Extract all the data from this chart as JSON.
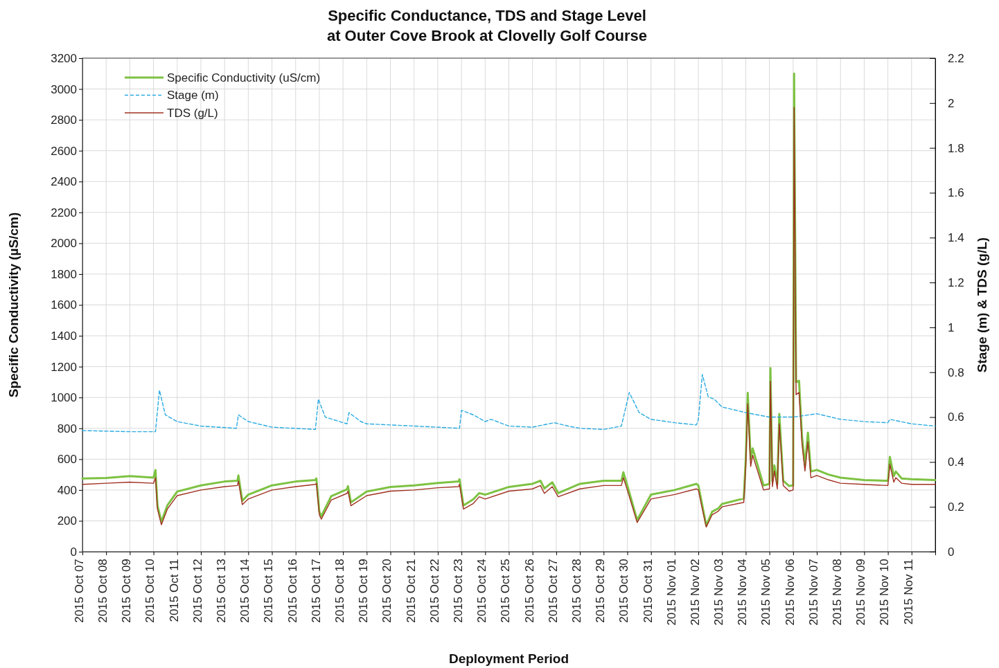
{
  "chart_data": {
    "type": "line",
    "title": "Specific Conductance, TDS and Stage Level",
    "subtitle": "at Outer Cove Brook at Clovelly Golf Course",
    "xlabel": "Deployment Period",
    "ylabel": "Specific Conductivity (µS/cm)",
    "y2label": "Stage (m) & TDS (g/L)",
    "xlim": [
      "2015-10-07",
      "2015-11-12"
    ],
    "xticks": [
      {
        "value": "2015-10-07",
        "label": "2015 Oct 07"
      },
      {
        "value": "2015-10-08",
        "label": "2015 Oct 08"
      },
      {
        "value": "2015-10-09",
        "label": "2015 Oct 09"
      },
      {
        "value": "2015-10-10",
        "label": "2015 Oct 10"
      },
      {
        "value": "2015-10-11",
        "label": "2015 Oct 11"
      },
      {
        "value": "2015-10-12",
        "label": "2015 Oct 12"
      },
      {
        "value": "2015-10-13",
        "label": "2015 Oct 13"
      },
      {
        "value": "2015-10-14",
        "label": "2015 Oct 14"
      },
      {
        "value": "2015-10-15",
        "label": "2015 Oct 15"
      },
      {
        "value": "2015-10-16",
        "label": "2015 Oct 16"
      },
      {
        "value": "2015-10-17",
        "label": "2015 Oct 17"
      },
      {
        "value": "2015-10-18",
        "label": "2015 Oct 18"
      },
      {
        "value": "2015-10-19",
        "label": "2015 Oct 19"
      },
      {
        "value": "2015-10-20",
        "label": "2015 Oct 20"
      },
      {
        "value": "2015-10-21",
        "label": "2015 Oct 21"
      },
      {
        "value": "2015-10-22",
        "label": "2015 Oct 22"
      },
      {
        "value": "2015-10-23",
        "label": "2015 Oct 23"
      },
      {
        "value": "2015-10-24",
        "label": "2015 Oct 24"
      },
      {
        "value": "2015-10-25",
        "label": "2015 Oct 25"
      },
      {
        "value": "2015-10-26",
        "label": "2015 Oct 26"
      },
      {
        "value": "2015-10-27",
        "label": "2015 Oct 27"
      },
      {
        "value": "2015-10-28",
        "label": "2015 Oct 28"
      },
      {
        "value": "2015-10-29",
        "label": "2015 Oct 29"
      },
      {
        "value": "2015-10-30",
        "label": "2015 Oct 30"
      },
      {
        "value": "2015-10-31",
        "label": "2015 Oct 31"
      },
      {
        "value": "2015-11-01",
        "label": "2015 Nov 01"
      },
      {
        "value": "2015-11-02",
        "label": "2015 Nov 02"
      },
      {
        "value": "2015-11-03",
        "label": "2015 Nov 03"
      },
      {
        "value": "2015-11-04",
        "label": "2015 Nov 04"
      },
      {
        "value": "2015-11-05",
        "label": "2015 Nov 05"
      },
      {
        "value": "2015-11-06",
        "label": "2015 Nov 06"
      },
      {
        "value": "2015-11-07",
        "label": "2015 Nov 07"
      },
      {
        "value": "2015-11-08",
        "label": "2015 Nov 08"
      },
      {
        "value": "2015-11-09",
        "label": "2015 Nov 09"
      },
      {
        "value": "2015-11-10",
        "label": "2015 Nov 10"
      },
      {
        "value": "2015-11-11",
        "label": "2015 Nov 11"
      },
      {
        "value": "2015-11-12",
        "label": null
      }
    ],
    "ylim": [
      0,
      3200
    ],
    "yticks": [
      0,
      200,
      400,
      600,
      800,
      1000,
      1200,
      1400,
      1600,
      1800,
      2000,
      2200,
      2400,
      2600,
      2800,
      3000,
      3200
    ],
    "y2lim": [
      0,
      2.2
    ],
    "y2ticks": [
      0,
      0.2,
      0.4,
      0.6,
      0.8,
      1,
      1.2,
      1.4,
      1.6,
      1.8,
      2,
      2.2
    ],
    "grid": true,
    "legend": "top left",
    "marker": "none",
    "series": [
      {
        "name": "Specific Conductivity (uS/cm)",
        "color": "#7dc242",
        "line_style": "solid",
        "x": [
          "2015-10-07T00:00",
          "2015-10-08T00:00",
          "2015-10-09T00:00",
          "2015-10-10T00:00",
          "2015-10-10T02:00",
          "2015-10-10T04:00",
          "2015-10-10T08:00",
          "2015-10-10T14:00",
          "2015-10-11T00:00",
          "2015-10-12T00:00",
          "2015-10-13T00:00",
          "2015-10-13T13:00",
          "2015-10-13T14:00",
          "2015-10-13T18:00",
          "2015-10-14T00:00",
          "2015-10-15T00:00",
          "2015-10-16T00:00",
          "2015-10-16T20:00",
          "2015-10-16T21:00",
          "2015-10-17T00:00",
          "2015-10-17T02:00",
          "2015-10-17T12:00",
          "2015-10-18T04:00",
          "2015-10-18T05:00",
          "2015-10-18T08:00",
          "2015-10-19T00:00",
          "2015-10-20T00:00",
          "2015-10-21T00:00",
          "2015-10-22T00:00",
          "2015-10-22T21:00",
          "2015-10-22T22:00",
          "2015-10-23T02:00",
          "2015-10-23T12:00",
          "2015-10-23T18:00",
          "2015-10-24T00:00",
          "2015-10-25T00:00",
          "2015-10-26T00:00",
          "2015-10-26T08:00",
          "2015-10-26T12:00",
          "2015-10-26T20:00",
          "2015-10-27T02:00",
          "2015-10-28T00:00",
          "2015-10-29T00:00",
          "2015-10-29T18:00",
          "2015-10-29T20:00",
          "2015-10-30T00:00",
          "2015-10-30T10:00",
          "2015-10-30T18:00",
          "2015-10-31T00:00",
          "2015-11-01T00:00",
          "2015-11-01T22:00",
          "2015-11-02T00:00",
          "2015-11-02T04:00",
          "2015-11-02T08:00",
          "2015-11-02T14:00",
          "2015-11-02T20:00",
          "2015-11-03T00:00",
          "2015-11-03T22:00",
          "2015-11-04T00:00",
          "2015-11-04T02:00",
          "2015-11-04T05:00",
          "2015-11-04T07:00",
          "2015-11-04T18:00",
          "2015-11-05T00:00",
          "2015-11-05T01:00",
          "2015-11-05T03:00",
          "2015-11-05T05:00",
          "2015-11-05T08:00",
          "2015-11-05T10:00",
          "2015-11-05T14:00",
          "2015-11-05T20:00",
          "2015-11-06T00:00",
          "2015-11-06T01:00",
          "2015-11-06T03:00",
          "2015-11-06T06:00",
          "2015-11-06T09:00",
          "2015-11-06T12:00",
          "2015-11-06T15:00",
          "2015-11-06T18:00",
          "2015-11-07T00:00",
          "2015-11-07T12:00",
          "2015-11-08T00:00",
          "2015-11-09T00:00",
          "2015-11-10T00:00",
          "2015-11-10T02:00",
          "2015-11-10T06:00",
          "2015-11-10T08:00",
          "2015-11-10T14:00",
          "2015-11-11T00:00",
          "2015-11-12T00:00"
        ],
        "values": [
          475,
          478,
          490,
          480,
          530,
          300,
          195,
          300,
          390,
          430,
          455,
          460,
          495,
          330,
          370,
          430,
          455,
          465,
          475,
          260,
          230,
          360,
          405,
          425,
          320,
          390,
          420,
          430,
          445,
          455,
          470,
          300,
          340,
          380,
          370,
          420,
          440,
          460,
          410,
          450,
          380,
          440,
          460,
          460,
          515,
          430,
          205,
          300,
          370,
          400,
          440,
          430,
          300,
          170,
          260,
          280,
          310,
          345,
          600,
          1030,
          600,
          670,
          430,
          440,
          1190,
          457,
          560,
          440,
          893,
          460,
          426,
          430,
          3100,
          1100,
          1108,
          750,
          560,
          772,
          520,
          530,
          500,
          480,
          465,
          460,
          615,
          490,
          520,
          475,
          470,
          465
        ]
      },
      {
        "name": "Stage (m)",
        "color": "#29abe2",
        "line_style": "dashed",
        "axis": "y2",
        "x": [
          "2015-10-07T00:00",
          "2015-10-09T00:00",
          "2015-10-10T02:00",
          "2015-10-10T06:00",
          "2015-10-10T12:00",
          "2015-10-11T00:00",
          "2015-10-12T00:00",
          "2015-10-13T12:00",
          "2015-10-13T14:00",
          "2015-10-14T00:00",
          "2015-10-15T00:00",
          "2015-10-16T20:00",
          "2015-10-16T23:00",
          "2015-10-17T06:00",
          "2015-10-18T04:00",
          "2015-10-18T06:00",
          "2015-10-18T18:00",
          "2015-10-19T00:00",
          "2015-10-20T00:00",
          "2015-10-22T00:00",
          "2015-10-22T22:00",
          "2015-10-23T00:00",
          "2015-10-23T12:00",
          "2015-10-24T00:00",
          "2015-10-24T06:00",
          "2015-10-25T00:00",
          "2015-10-26T00:00",
          "2015-10-26T22:00",
          "2015-10-27T12:00",
          "2015-10-28T00:00",
          "2015-10-29T00:00",
          "2015-10-29T18:00",
          "2015-10-30T02:00",
          "2015-10-30T12:00",
          "2015-10-31T00:00",
          "2015-11-01T00:00",
          "2015-11-01T22:00",
          "2015-11-02T00:00",
          "2015-11-02T04:00",
          "2015-11-02T10:00",
          "2015-11-02T16:00",
          "2015-11-03T00:00",
          "2015-11-04T00:00",
          "2015-11-05T00:00",
          "2015-11-06T00:00",
          "2015-11-07T00:00",
          "2015-11-08T00:00",
          "2015-11-09T00:00",
          "2015-11-10T00:00",
          "2015-11-10T02:00",
          "2015-11-11T00:00",
          "2015-11-12T00:00"
        ],
        "values": [
          0.54,
          0.535,
          0.535,
          0.72,
          0.61,
          0.58,
          0.56,
          0.55,
          0.61,
          0.58,
          0.555,
          0.545,
          0.68,
          0.6,
          0.57,
          0.62,
          0.58,
          0.57,
          0.565,
          0.555,
          0.55,
          0.63,
          0.61,
          0.58,
          0.59,
          0.56,
          0.555,
          0.575,
          0.56,
          0.55,
          0.545,
          0.56,
          0.71,
          0.62,
          0.59,
          0.575,
          0.565,
          0.59,
          0.79,
          0.69,
          0.68,
          0.645,
          0.62,
          0.6,
          0.6,
          0.615,
          0.59,
          0.58,
          0.575,
          0.59,
          0.57,
          0.56
        ]
      },
      {
        "name": "TDS (g/L)",
        "color": "#a03020",
        "line_style": "solid",
        "axis": "y2",
        "x": [
          "2015-10-07T00:00",
          "2015-10-08T00:00",
          "2015-10-09T00:00",
          "2015-10-10T00:00",
          "2015-10-10T02:00",
          "2015-10-10T04:00",
          "2015-10-10T08:00",
          "2015-10-10T14:00",
          "2015-10-11T00:00",
          "2015-10-12T00:00",
          "2015-10-13T00:00",
          "2015-10-13T13:00",
          "2015-10-13T14:00",
          "2015-10-13T18:00",
          "2015-10-14T00:00",
          "2015-10-15T00:00",
          "2015-10-16T00:00",
          "2015-10-16T20:00",
          "2015-10-16T21:00",
          "2015-10-17T00:00",
          "2015-10-17T02:00",
          "2015-10-17T12:00",
          "2015-10-18T04:00",
          "2015-10-18T05:00",
          "2015-10-18T08:00",
          "2015-10-19T00:00",
          "2015-10-20T00:00",
          "2015-10-21T00:00",
          "2015-10-22T00:00",
          "2015-10-22T21:00",
          "2015-10-22T22:00",
          "2015-10-23T02:00",
          "2015-10-23T12:00",
          "2015-10-23T18:00",
          "2015-10-24T00:00",
          "2015-10-25T00:00",
          "2015-10-26T00:00",
          "2015-10-26T08:00",
          "2015-10-26T12:00",
          "2015-10-26T20:00",
          "2015-10-27T02:00",
          "2015-10-28T00:00",
          "2015-10-29T00:00",
          "2015-10-29T18:00",
          "2015-10-29T20:00",
          "2015-10-30T00:00",
          "2015-10-30T10:00",
          "2015-10-30T18:00",
          "2015-10-31T00:00",
          "2015-11-01T00:00",
          "2015-11-01T22:00",
          "2015-11-02T00:00",
          "2015-11-02T04:00",
          "2015-11-02T08:00",
          "2015-11-02T14:00",
          "2015-11-02T20:00",
          "2015-11-03T00:00",
          "2015-11-03T22:00",
          "2015-11-04T00:00",
          "2015-11-04T02:00",
          "2015-11-04T05:00",
          "2015-11-04T07:00",
          "2015-11-04T18:00",
          "2015-11-05T00:00",
          "2015-11-05T01:00",
          "2015-11-05T03:00",
          "2015-11-05T05:00",
          "2015-11-05T08:00",
          "2015-11-05T10:00",
          "2015-11-05T14:00",
          "2015-11-05T20:00",
          "2015-11-06T00:00",
          "2015-11-06T01:00",
          "2015-11-06T03:00",
          "2015-11-06T06:00",
          "2015-11-06T09:00",
          "2015-11-06T12:00",
          "2015-11-06T15:00",
          "2015-11-06T18:00",
          "2015-11-07T00:00",
          "2015-11-07T12:00",
          "2015-11-08T00:00",
          "2015-11-09T00:00",
          "2015-11-10T00:00",
          "2015-11-10T02:00",
          "2015-11-10T06:00",
          "2015-11-10T08:00",
          "2015-11-10T14:00",
          "2015-11-11T00:00",
          "2015-11-12T00:00"
        ],
        "values": [
          0.3,
          0.305,
          0.31,
          0.305,
          0.33,
          0.19,
          0.12,
          0.19,
          0.25,
          0.275,
          0.29,
          0.295,
          0.315,
          0.21,
          0.235,
          0.275,
          0.29,
          0.3,
          0.305,
          0.165,
          0.145,
          0.23,
          0.26,
          0.27,
          0.205,
          0.25,
          0.27,
          0.275,
          0.285,
          0.29,
          0.3,
          0.19,
          0.215,
          0.245,
          0.235,
          0.27,
          0.28,
          0.295,
          0.26,
          0.29,
          0.245,
          0.28,
          0.295,
          0.295,
          0.33,
          0.275,
          0.13,
          0.19,
          0.235,
          0.255,
          0.28,
          0.275,
          0.19,
          0.11,
          0.165,
          0.18,
          0.2,
          0.22,
          0.38,
          0.66,
          0.38,
          0.43,
          0.275,
          0.28,
          0.76,
          0.29,
          0.36,
          0.28,
          0.57,
          0.295,
          0.27,
          0.275,
          1.98,
          0.7,
          0.71,
          0.48,
          0.36,
          0.49,
          0.33,
          0.34,
          0.32,
          0.305,
          0.3,
          0.295,
          0.39,
          0.31,
          0.33,
          0.305,
          0.3,
          0.3
        ]
      }
    ]
  }
}
